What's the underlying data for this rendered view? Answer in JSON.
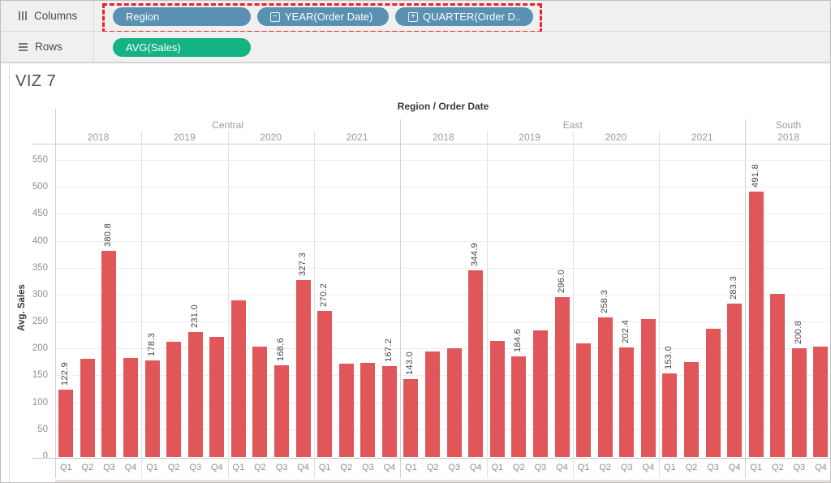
{
  "shelves": {
    "columns": {
      "label": "Columns",
      "pills": [
        {
          "label": "Region"
        },
        {
          "label": "YEAR(Order Date)",
          "icon_glyph": "−"
        },
        {
          "label": "QUARTER(Order D..",
          "icon_glyph": "+"
        }
      ]
    },
    "rows": {
      "label": "Rows",
      "pills": [
        {
          "label": "AVG(Sales)"
        }
      ]
    }
  },
  "worksheet": {
    "title": "VIZ 7"
  },
  "colors": {
    "pill_blue": "#5a90b1",
    "pill_green": "#15b283",
    "bar_red": "#e15759",
    "annotation_red": "#e8222a",
    "axis_text": "#8f8f8f",
    "header_text": "#3a3a3a"
  },
  "chart_data": {
    "type": "bar",
    "title": "Region / Order Date",
    "ylabel": "Avg. Sales",
    "ylim": [
      0,
      575
    ],
    "yticks": [
      0,
      50,
      100,
      150,
      200,
      250,
      300,
      350,
      400,
      450,
      500,
      550
    ],
    "grid": true,
    "legend": null,
    "quarters": [
      "Q1",
      "Q2",
      "Q3",
      "Q4"
    ],
    "regions": [
      {
        "name": "Central",
        "groups": 4
      },
      {
        "name": "East",
        "groups": 4
      },
      {
        "name": "South",
        "groups": 1
      }
    ],
    "groups": [
      {
        "region": "Central",
        "year": "2018",
        "values": [
          122.9,
          181,
          380.8,
          183
        ],
        "labels": [
          "122.9",
          null,
          "380.8",
          null
        ]
      },
      {
        "region": "Central",
        "year": "2019",
        "values": [
          178.3,
          212,
          231.0,
          221
        ],
        "labels": [
          "178.3",
          null,
          "231.0",
          null
        ]
      },
      {
        "region": "Central",
        "year": "2020",
        "values": [
          289,
          204,
          168.6,
          327.3
        ],
        "labels": [
          null,
          null,
          "168.6",
          "327.3"
        ]
      },
      {
        "region": "Central",
        "year": "2021",
        "values": [
          270.2,
          172,
          173,
          167.2
        ],
        "labels": [
          "270.2",
          null,
          null,
          "167.2"
        ]
      },
      {
        "region": "East",
        "year": "2018",
        "values": [
          143.0,
          194,
          201,
          344.9
        ],
        "labels": [
          "143.0",
          null,
          null,
          "344.9"
        ]
      },
      {
        "region": "East",
        "year": "2019",
        "values": [
          214,
          184.6,
          233,
          296.0
        ],
        "labels": [
          null,
          "184.6",
          null,
          "296.0"
        ]
      },
      {
        "region": "East",
        "year": "2020",
        "values": [
          210,
          258.3,
          202.4,
          254
        ],
        "labels": [
          null,
          "258.3",
          "202.4",
          null
        ]
      },
      {
        "region": "East",
        "year": "2021",
        "values": [
          153.0,
          175,
          237,
          283.3
        ],
        "labels": [
          "153.0",
          null,
          null,
          "283.3"
        ]
      },
      {
        "region": "South",
        "year": "2018",
        "values": [
          491.8,
          301,
          200.8,
          203
        ],
        "labels": [
          "491.8",
          null,
          "200.8",
          null
        ]
      }
    ]
  }
}
